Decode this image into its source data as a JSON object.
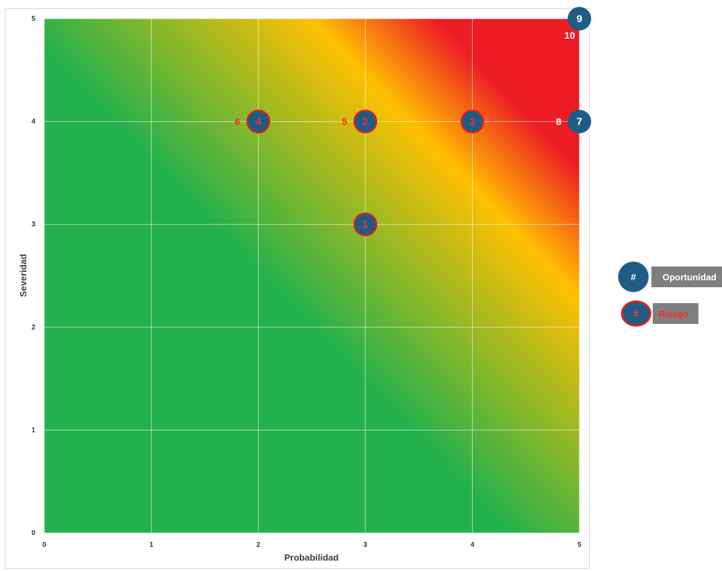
{
  "chart_data": {
    "type": "scatter",
    "title": "",
    "xlabel": "Probabilidad",
    "ylabel": "Severidad",
    "xlim": [
      0,
      5
    ],
    "ylim": [
      0,
      5
    ],
    "x_ticks": [
      "0",
      "1",
      "2",
      "3",
      "4",
      "5"
    ],
    "y_ticks": [
      "0",
      "1",
      "2",
      "3",
      "4",
      "5"
    ],
    "grid": true,
    "background": "green-yellow-red diagonal gradient (low-left green, top-right red)",
    "series": [
      {
        "name": "Oportunidad",
        "points": [
          {
            "label": "7",
            "x": 5,
            "y": 4
          },
          {
            "label": "9",
            "x": 5,
            "y": 5
          }
        ]
      },
      {
        "name": "Riesgo",
        "points": [
          {
            "label": "1",
            "x": 3,
            "y": 3
          },
          {
            "label": "2",
            "x": 3,
            "y": 4
          },
          {
            "label": "3",
            "x": 4,
            "y": 4
          },
          {
            "label": "4",
            "x": 2,
            "y": 4
          }
        ]
      }
    ],
    "side_labels": [
      {
        "label": "5",
        "x": 3,
        "y": 4,
        "side": "left",
        "color": "red"
      },
      {
        "label": "6",
        "x": 2,
        "y": 4,
        "side": "left",
        "color": "red"
      },
      {
        "label": "8",
        "x": 5,
        "y": 4,
        "side": "left",
        "color": "white"
      },
      {
        "label": "10",
        "x": 5,
        "y": 5,
        "side": "below-left",
        "color": "white"
      }
    ]
  },
  "legend": {
    "position": "right",
    "items": [
      {
        "symbol": "#",
        "label": "Oportunidad"
      },
      {
        "symbol": "#",
        "label": "Riesgo"
      }
    ]
  },
  "colors": {
    "green": "#22b14c",
    "yellow": "#ffc000",
    "red": "#ed1c24",
    "marker_fill": "#1f5c85",
    "risk_outline": "#e02020",
    "risk_text": "#ff2a2a",
    "legend_box": "#7f7f7f"
  }
}
